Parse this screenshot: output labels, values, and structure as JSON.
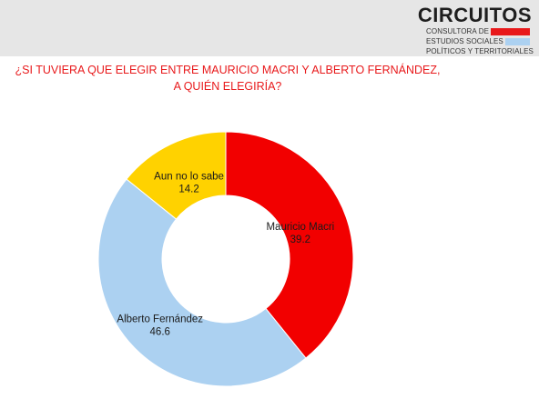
{
  "logo": {
    "name": "CIRCUITOS",
    "lines": [
      {
        "text": "CONSULTORA DE",
        "color": "#e8191b"
      },
      {
        "text": "ESTUDIOS SOCIALES",
        "color": "#acd1f1"
      },
      {
        "text": "POLÍTICOS Y TERRITORIALES",
        "color": "#ffd200"
      }
    ]
  },
  "title": {
    "line1": "¿SI TUVIERA QUE ELEGIR ENTRE MAURICIO MACRI Y ALBERTO FERNÁNDEZ,",
    "line2": "A QUIÉN ELEGIRÍA?"
  },
  "chart_data": {
    "type": "pie",
    "variant": "donut",
    "title": "¿SI TUVIERA QUE ELEGIR ENTRE MAURICIO MACRI Y ALBERTO FERNÁNDEZ, A QUIÉN ELEGIRÍA?",
    "slices": [
      {
        "label": "Mauricio Macri",
        "value": 39.2,
        "color": "#f20000"
      },
      {
        "label": "Alberto Fernández",
        "value": 46.6,
        "color": "#acd1f1"
      },
      {
        "label": "Aun no lo sabe",
        "value": 14.2,
        "color": "#ffd200"
      }
    ],
    "start_angle_deg": 0,
    "direction": "clockwise",
    "legend": "none"
  }
}
